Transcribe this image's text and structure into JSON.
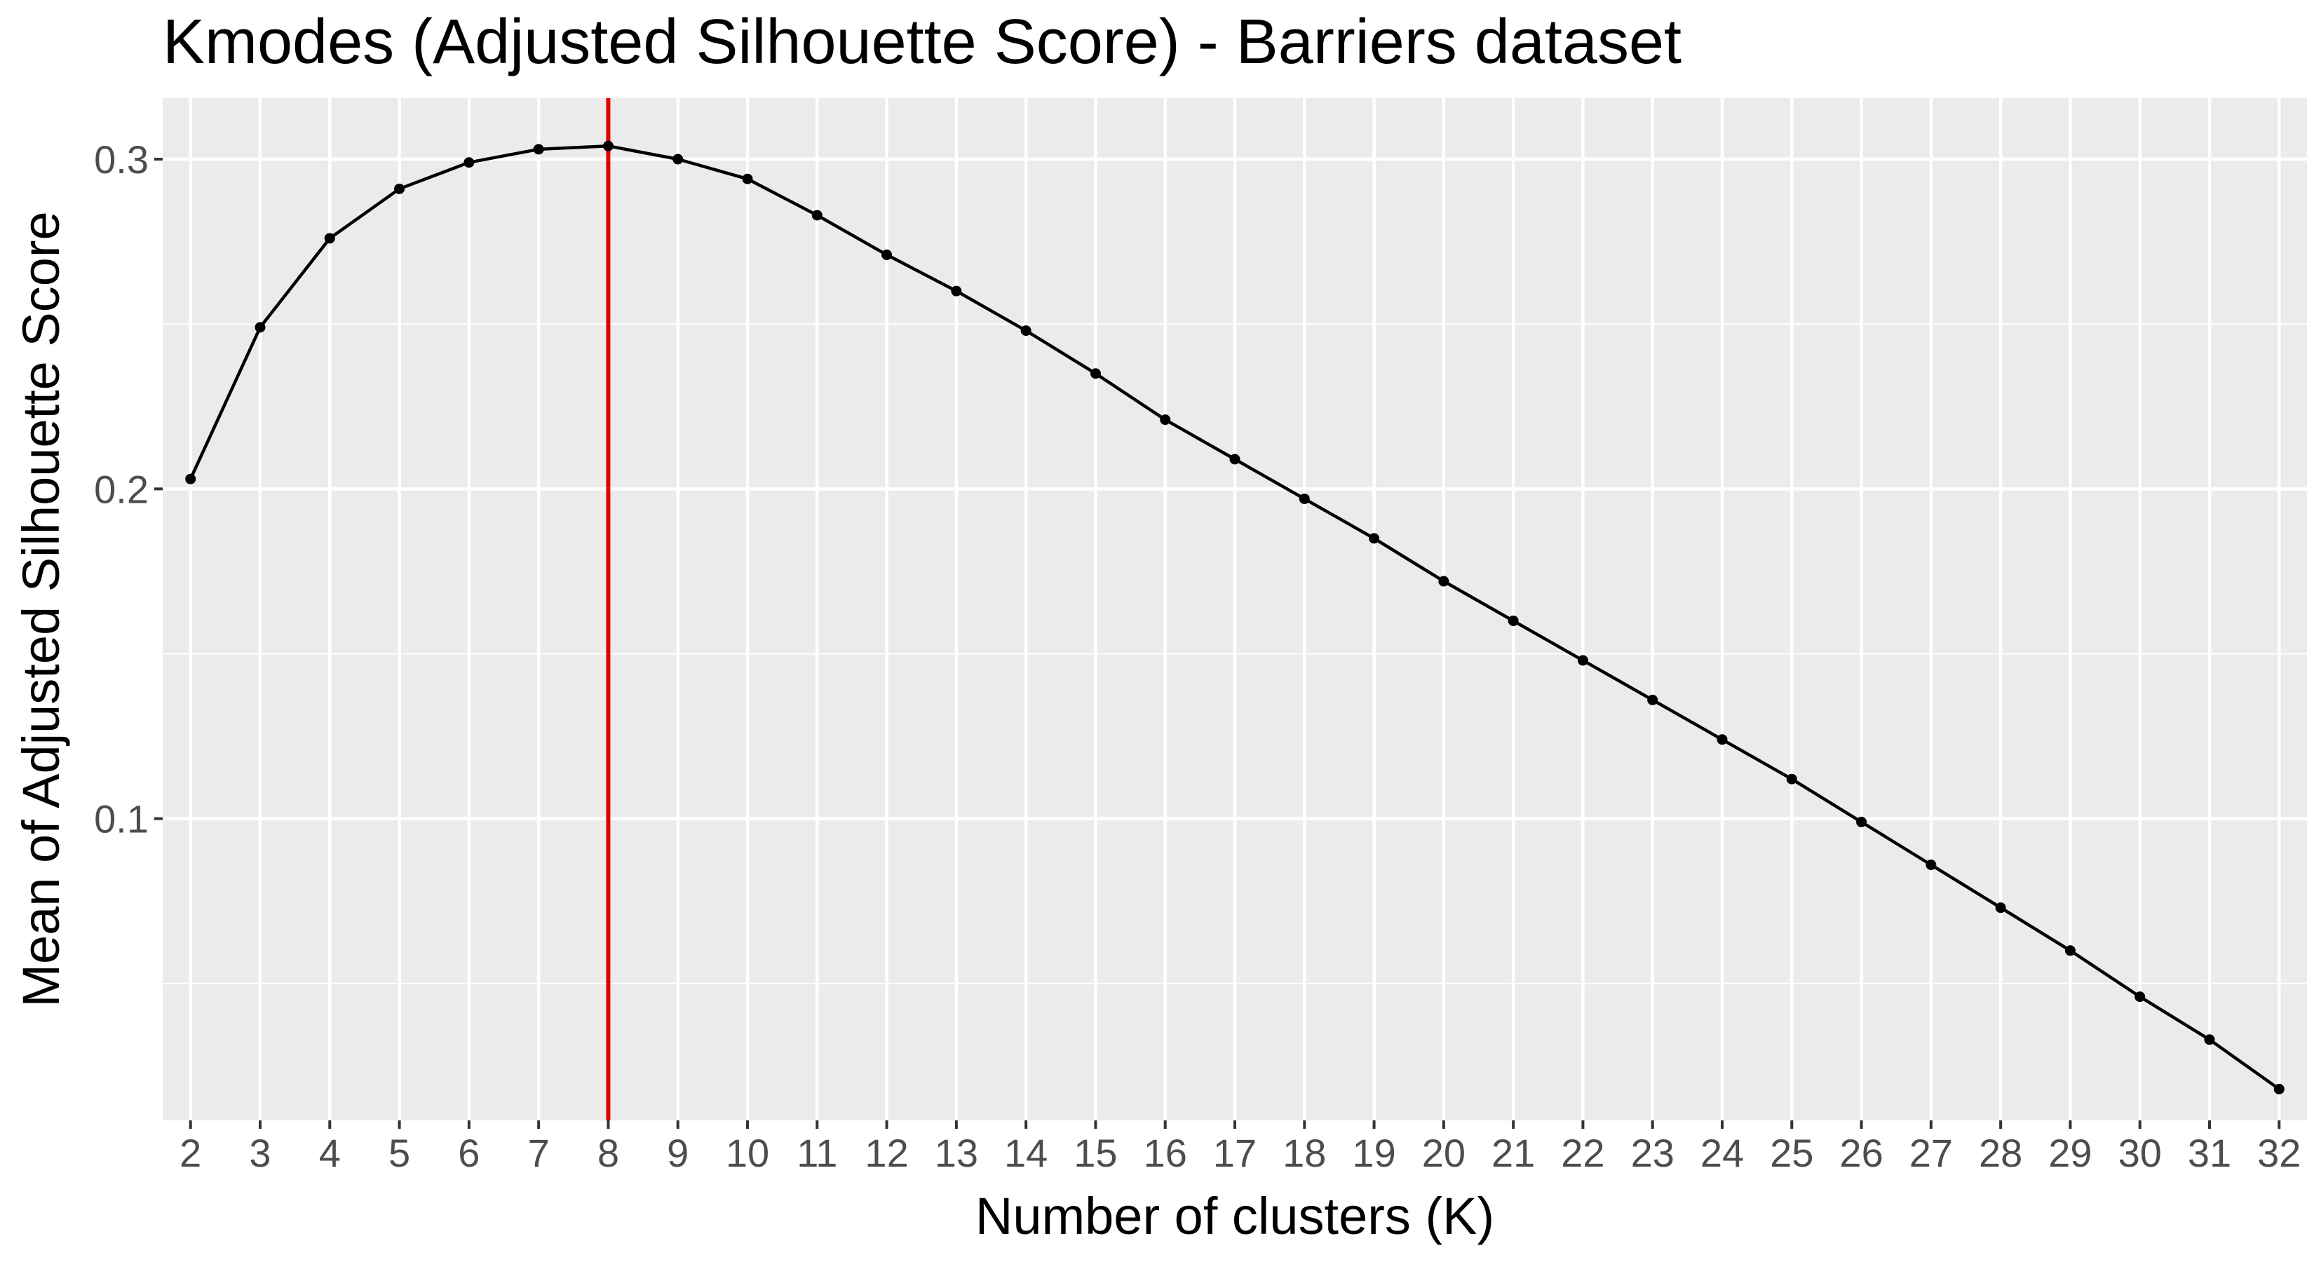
{
  "chart_data": {
    "type": "line",
    "title": "Kmodes (Adjusted Silhouette Score) - Barriers dataset",
    "xlabel": "Number of clusters (K)",
    "ylabel": "Mean of Adjusted Silhouette Score",
    "x": [
      2,
      3,
      4,
      5,
      6,
      7,
      8,
      9,
      10,
      11,
      12,
      13,
      14,
      15,
      16,
      17,
      18,
      19,
      20,
      21,
      22,
      23,
      24,
      25,
      26,
      27,
      28,
      29,
      30,
      31,
      32
    ],
    "series": [
      {
        "values": [
          0.203,
          0.249,
          0.276,
          0.291,
          0.299,
          0.303,
          0.304,
          0.3,
          0.294,
          0.283,
          0.271,
          0.26,
          0.248,
          0.235,
          0.221,
          0.209,
          0.197,
          0.185,
          0.172,
          0.16,
          0.148,
          0.136,
          0.124,
          0.112,
          0.099,
          0.086,
          0.073,
          0.06,
          0.046,
          0.033,
          0.018
        ]
      }
    ],
    "xlim": [
      1.6,
      32.4
    ],
    "ylim": [
      0.0085,
      0.3185
    ],
    "x_ticks": [
      2,
      3,
      4,
      5,
      6,
      7,
      8,
      9,
      10,
      11,
      12,
      13,
      14,
      15,
      16,
      17,
      18,
      19,
      20,
      21,
      22,
      23,
      24,
      25,
      26,
      27,
      28,
      29,
      30,
      31,
      32
    ],
    "y_ticks": [
      0.1,
      0.2,
      0.3
    ],
    "y_tick_labels": [
      "0.1",
      "0.2",
      "0.3"
    ],
    "y_minor_ticks": [
      0.05,
      0.15,
      0.25
    ],
    "vline": {
      "x": 8,
      "color": "#e00000"
    },
    "grid": true,
    "colors": {
      "panel_background": "#ebebeb",
      "grid": "#ffffff",
      "line": "#000000",
      "points": "#000000",
      "tick_text": "#4d4d4d"
    }
  }
}
